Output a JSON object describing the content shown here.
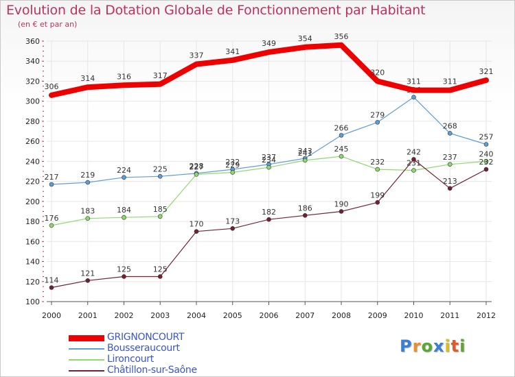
{
  "chart_data": {
    "type": "line",
    "title": "Evolution de la Dotation Globale de Fonctionnement par Habitant",
    "subtitle": "(en € et par an)",
    "xlabel": "",
    "ylabel": "",
    "ylim": [
      100,
      360
    ],
    "yticks": [
      "100",
      "120",
      "140",
      "160",
      "180",
      "200",
      "220",
      "240",
      "260",
      "280",
      "300",
      "320",
      "340",
      "360"
    ],
    "categories": [
      "2000",
      "2001",
      "2002",
      "2003",
      "2004",
      "2005",
      "2006",
      "2007",
      "2008",
      "2009",
      "2010",
      "2011",
      "2012"
    ],
    "grid": true,
    "legend_position": "bottom-left",
    "series": [
      {
        "name": "GRIGNONCOURT",
        "color": "#ee0000",
        "values": [
          306,
          314,
          316,
          317,
          337,
          341,
          349,
          354,
          356,
          320,
          311,
          311,
          321
        ]
      },
      {
        "name": "Bousseraucourt",
        "color": "#5f9dd6",
        "values": [
          217,
          219,
          224,
          225,
          228,
          232,
          237,
          243,
          266,
          279,
          304,
          268,
          257
        ]
      },
      {
        "name": "Lironcourt",
        "color": "#8fd86f",
        "values": [
          176,
          183,
          184,
          185,
          227,
          229,
          234,
          241,
          245,
          232,
          231,
          237,
          240
        ]
      },
      {
        "name": "Châtillon-sur-Saône",
        "color": "#6e2232",
        "values": [
          114,
          121,
          125,
          125,
          170,
          173,
          182,
          186,
          190,
          199,
          242,
          213,
          232
        ]
      }
    ]
  },
  "logo": {
    "letters": [
      "P",
      "r",
      "o",
      "x",
      "i",
      "t",
      "i"
    ],
    "colors": [
      "#3a7fd0",
      "#e8912a",
      "#5aa832",
      "#3a7fd0",
      "#d8c020",
      "#e05a2a",
      "#5aa832"
    ]
  }
}
